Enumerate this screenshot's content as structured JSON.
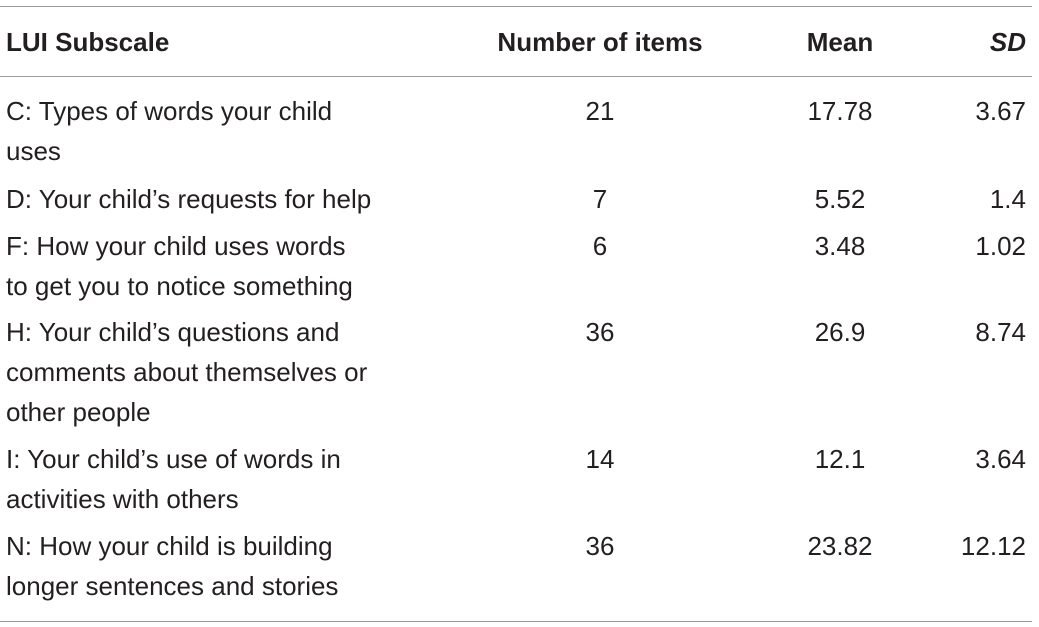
{
  "table": {
    "headers": {
      "subscale": "LUI Subscale",
      "items": "Number of items",
      "mean": "Mean",
      "sd": "SD"
    },
    "rows": [
      {
        "subscale_line1": "C: Types of words your child",
        "subscale_line2": "uses",
        "subscale_line3": "",
        "items": "21",
        "mean": "17.78",
        "sd": "3.67"
      },
      {
        "subscale_line1": "D: Your child’s requests for help",
        "subscale_line2": "",
        "subscale_line3": "",
        "items": "7",
        "mean": "5.52",
        "sd": "1.4"
      },
      {
        "subscale_line1": "F: How your child uses words",
        "subscale_line2": "to get you to notice something",
        "subscale_line3": "",
        "items": "6",
        "mean": "3.48",
        "sd": "1.02"
      },
      {
        "subscale_line1": "H: Your child’s questions and",
        "subscale_line2": "comments about themselves or",
        "subscale_line3": "other people",
        "items": "36",
        "mean": "26.9",
        "sd": "8.74"
      },
      {
        "subscale_line1": "I: Your child’s use of words in",
        "subscale_line2": "activities with others",
        "subscale_line3": "",
        "items": "14",
        "mean": "12.1",
        "sd": "3.64"
      },
      {
        "subscale_line1": "N: How your child is building",
        "subscale_line2": "longer sentences and stories",
        "subscale_line3": "",
        "items": "36",
        "mean": "23.82",
        "sd": "12.12"
      }
    ]
  }
}
